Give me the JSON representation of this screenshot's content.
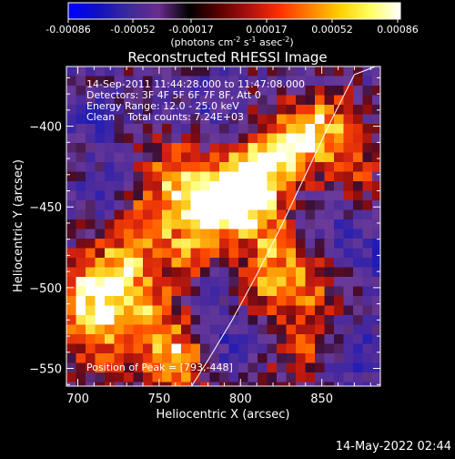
{
  "colorbar": {
    "ticks": [
      "-0.00086",
      "-0.00052",
      "-0.00017",
      "0.00017",
      "0.00052",
      "0.00086"
    ],
    "unit_parts": [
      "(photons cm",
      "-2",
      " s",
      "-1",
      " asec",
      "-2",
      ")"
    ],
    "range": [
      -0.00086,
      0.00086
    ],
    "colormap": [
      "#0000ff",
      "#1010c0",
      "#3c2a9a",
      "#6a2c8e",
      "#000000",
      "#5a0000",
      "#b01010",
      "#ff3000",
      "#ff8000",
      "#ffd000",
      "#ffff60",
      "#ffffff"
    ]
  },
  "chart_data": {
    "type": "heatmap",
    "title": "Reconstructed RHESSI Image",
    "xlabel": "Heliocentric X (arcsec)",
    "ylabel": "Heliocentric Y (arcsec)",
    "xlim": [
      693,
      886
    ],
    "ylim": [
      -561,
      -363
    ],
    "xticks": [
      700,
      750,
      800,
      850
    ],
    "yticks": [
      -400,
      -450,
      -500,
      -550
    ],
    "grid": false,
    "info_lines": [
      "14-Sep-2011 11:44:28.000 to 11:47:08.000",
      "Detectors: 3F 4F 5F 6F 7F 8F, Att 0",
      "Energy Range: 12.0 - 25.0 keV",
      "Clean    Total counts: 7.24E+03"
    ],
    "peak_label": "Position of Peak = [793,-448]",
    "limb_x": [
      770,
      780,
      795,
      810,
      825,
      840,
      855,
      870,
      883
    ],
    "limb_y": [
      -561,
      -545,
      -520,
      -492,
      -462,
      -430,
      -398,
      -368,
      -363
    ],
    "bright_regions": [
      {
        "x": 800,
        "y": -445,
        "level": 1.0
      },
      {
        "x": 780,
        "y": -450,
        "level": 0.85
      },
      {
        "x": 810,
        "y": -430,
        "level": 0.8
      },
      {
        "x": 830,
        "y": -410,
        "level": 0.75
      },
      {
        "x": 850,
        "y": -400,
        "level": 0.75
      },
      {
        "x": 760,
        "y": -430,
        "level": 0.7
      },
      {
        "x": 740,
        "y": -460,
        "level": 0.65
      },
      {
        "x": 705,
        "y": -505,
        "level": 0.85
      },
      {
        "x": 725,
        "y": -490,
        "level": 0.7
      },
      {
        "x": 740,
        "y": -515,
        "level": 0.65
      },
      {
        "x": 760,
        "y": -545,
        "level": 0.9
      },
      {
        "x": 715,
        "y": -535,
        "level": 0.6
      },
      {
        "x": 815,
        "y": -495,
        "level": 0.55
      },
      {
        "x": 840,
        "y": -500,
        "level": 0.55
      },
      {
        "x": 835,
        "y": -535,
        "level": 0.5
      },
      {
        "x": 820,
        "y": -470,
        "level": 0.45
      },
      {
        "x": 770,
        "y": -480,
        "level": 0.6
      },
      {
        "x": 870,
        "y": -430,
        "level": 0.4
      }
    ],
    "dark_regions": [
      {
        "x": 795,
        "y": -535,
        "level": -0.4
      },
      {
        "x": 785,
        "y": -495,
        "level": -0.35
      },
      {
        "x": 720,
        "y": -440,
        "level": -0.35
      },
      {
        "x": 870,
        "y": -540,
        "level": -0.4
      },
      {
        "x": 710,
        "y": -395,
        "level": -0.3
      },
      {
        "x": 780,
        "y": -385,
        "level": -0.3
      },
      {
        "x": 880,
        "y": -480,
        "level": -0.35
      },
      {
        "x": 855,
        "y": -460,
        "level": -0.3
      }
    ]
  },
  "footer": {
    "timestamp": "14-May-2022 02:44"
  }
}
